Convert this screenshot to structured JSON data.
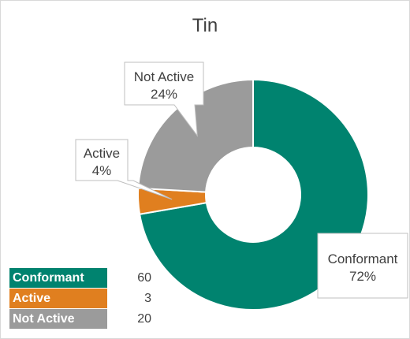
{
  "chart_data": {
    "type": "pie",
    "variant": "donut",
    "title": "Tin",
    "categories": [
      "Conformant",
      "Active",
      "Not Active"
    ],
    "values": [
      60,
      3,
      20
    ],
    "percent_labels": [
      "72%",
      "4%",
      "24%"
    ],
    "colors": [
      "#00836f",
      "#e07f1f",
      "#9b9b9b"
    ],
    "start_angle": "12 o'clock, clockwise"
  },
  "legend_table": {
    "rows": [
      {
        "label": "Conformant",
        "value": "60",
        "color": "#00836f"
      },
      {
        "label": "Active",
        "value": "3",
        "color": "#e07f1f"
      },
      {
        "label": "Not Active",
        "value": "20",
        "color": "#9b9b9b"
      }
    ]
  }
}
